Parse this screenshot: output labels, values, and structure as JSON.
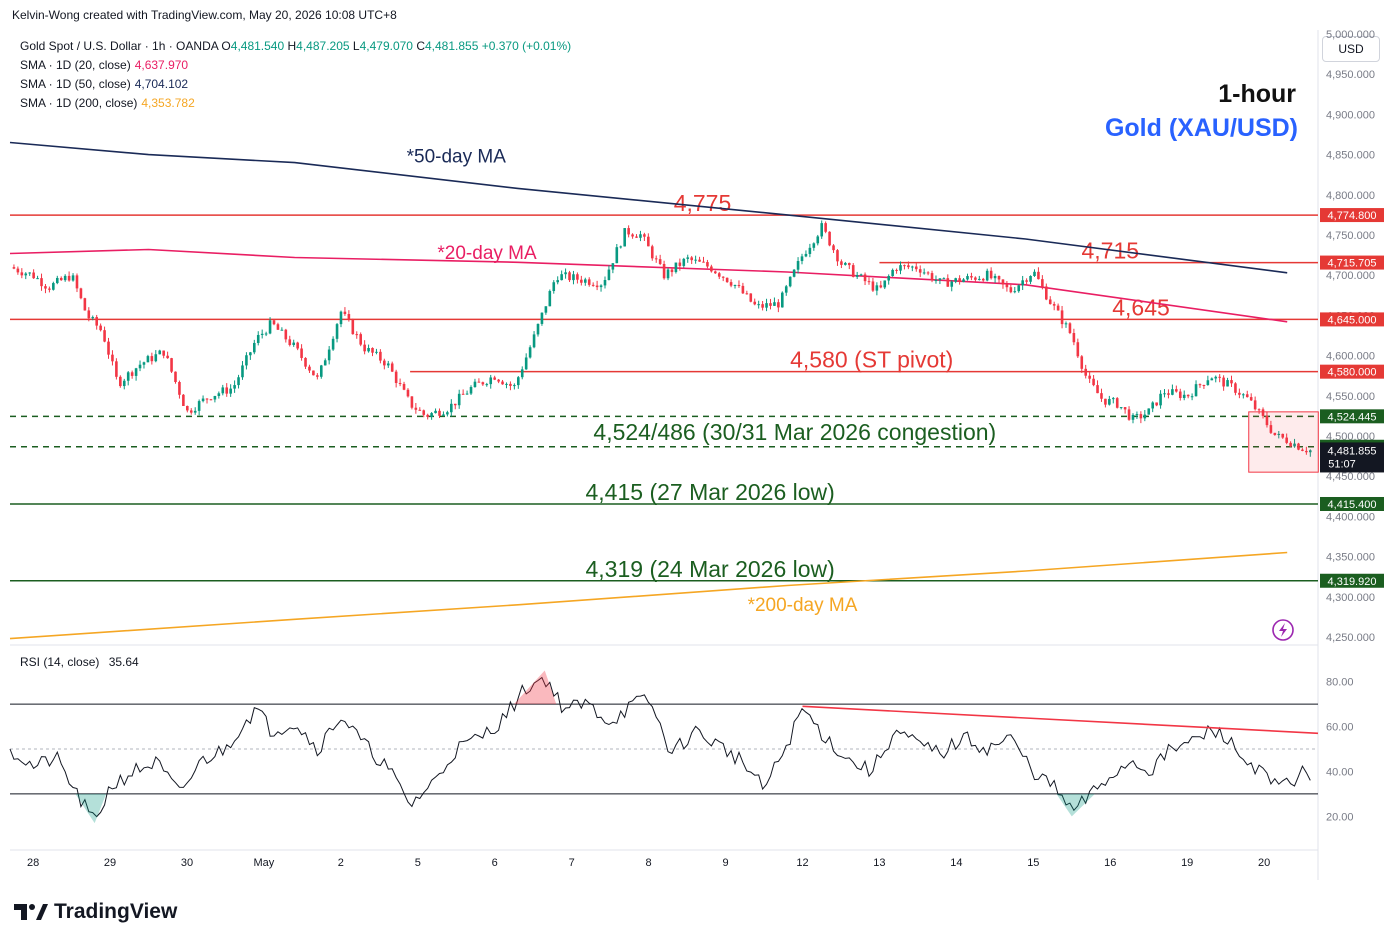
{
  "header": {
    "credit": "Kelvin-Wong created with TradingView.com, May 20, 2026 10:08 UTC+8",
    "symbol": "Gold Spot / U.S. Dollar · 1h · OANDA",
    "ohlc": {
      "open_label": "O",
      "open": "4,481.540",
      "high_label": "H",
      "high": "4,487.205",
      "low_label": "L",
      "low": "4,479.070",
      "close_label": "C",
      "close": "4,481.855",
      "change": "+0.370 (+0.01%)"
    },
    "indicators": [
      {
        "label": "SMA · 1D (20, close)",
        "value": "4,637.970",
        "color": "#e91e63"
      },
      {
        "label": "SMA · 1D (50, close)",
        "value": "4,704.102",
        "color": "#1a2a57"
      },
      {
        "label": "SMA · 1D (200, close)",
        "value": "4,353.782",
        "color": "#f5a623"
      }
    ],
    "currency_button": "USD"
  },
  "titles": {
    "timeframe": "1-hour",
    "instrument": "Gold (XAU/USD)"
  },
  "chart_data": [
    {
      "type": "candlestick",
      "ylim": [
        4240,
        5005
      ],
      "y_ticks": [
        "5,000.000",
        "4,950.000",
        "4,900.000",
        "4,850.000",
        "4,800.000",
        "4,750.000",
        "4,700.000",
        "4,650.000",
        "4,600.000",
        "4,550.000",
        "4,500.000",
        "4,450.000",
        "4,400.000",
        "4,350.000",
        "4,300.000",
        "4,250.000"
      ],
      "y_tick_values": [
        5000,
        4950,
        4900,
        4850,
        4800,
        4750,
        4700,
        4650,
        4600,
        4550,
        4500,
        4450,
        4400,
        4350,
        4300,
        4250
      ],
      "x_ticks": [
        "28",
        "29",
        "30",
        "May",
        "2",
        "5",
        "6",
        "7",
        "8",
        "9",
        "12",
        "13",
        "14",
        "15",
        "16",
        "19",
        "20"
      ],
      "x_domain": [
        0,
        17
      ],
      "x_tick_pos": [
        0.3,
        1.3,
        2.3,
        3.3,
        4.3,
        5.3,
        6.3,
        7.3,
        8.3,
        9.3,
        10.3,
        11.3,
        12.3,
        13.3,
        14.3,
        15.3,
        16.3
      ],
      "price_path": [
        [
          0,
          4710
        ],
        [
          0.3,
          4700
        ],
        [
          0.5,
          4685
        ],
        [
          0.8,
          4700
        ],
        [
          1.0,
          4650
        ],
        [
          1.2,
          4630
        ],
        [
          1.4,
          4565
        ],
        [
          1.7,
          4590
        ],
        [
          2.0,
          4605
        ],
        [
          2.3,
          4530
        ],
        [
          2.6,
          4550
        ],
        [
          2.9,
          4560
        ],
        [
          3.2,
          4620
        ],
        [
          3.4,
          4640
        ],
        [
          3.7,
          4610
        ],
        [
          4.0,
          4570
        ],
        [
          4.3,
          4655
        ],
        [
          4.6,
          4610
        ],
        [
          4.9,
          4590
        ],
        [
          5.2,
          4540
        ],
        [
          5.4,
          4525
        ],
        [
          5.7,
          4535
        ],
        [
          6.0,
          4560
        ],
        [
          6.3,
          4575
        ],
        [
          6.55,
          4560
        ],
        [
          6.8,
          4620
        ],
        [
          7.1,
          4700
        ],
        [
          7.4,
          4695
        ],
        [
          7.7,
          4690
        ],
        [
          8.0,
          4755
        ],
        [
          8.2,
          4750
        ],
        [
          8.5,
          4700
        ],
        [
          8.8,
          4720
        ],
        [
          9.1,
          4710
        ],
        [
          9.4,
          4690
        ],
        [
          9.7,
          4660
        ],
        [
          10.0,
          4665
        ],
        [
          10.3,
          4725
        ],
        [
          10.55,
          4760
        ],
        [
          10.8,
          4715
        ],
        [
          11.0,
          4700
        ],
        [
          11.3,
          4680
        ],
        [
          11.5,
          4710
        ],
        [
          11.8,
          4710
        ],
        [
          12.1,
          4690
        ],
        [
          12.4,
          4695
        ],
        [
          12.7,
          4700
        ],
        [
          13.0,
          4680
        ],
        [
          13.3,
          4705
        ],
        [
          13.5,
          4670
        ],
        [
          13.8,
          4625
        ],
        [
          14.0,
          4570
        ],
        [
          14.2,
          4545
        ],
        [
          14.4,
          4540
        ],
        [
          14.6,
          4520
        ],
        [
          14.8,
          4530
        ],
        [
          15.0,
          4555
        ],
        [
          15.3,
          4550
        ],
        [
          15.6,
          4575
        ],
        [
          15.9,
          4560
        ],
        [
          16.1,
          4545
        ],
        [
          16.3,
          4520
        ],
        [
          16.45,
          4500
        ],
        [
          16.6,
          4495
        ],
        [
          16.8,
          4485
        ],
        [
          16.9,
          4482
        ]
      ],
      "current_price": "4,481.855",
      "countdown": "51:07",
      "series": [
        {
          "name": "*50-day MA",
          "color": "#1a2a57",
          "points": [
            [
              0,
              4865
            ],
            [
              1.8,
              4850
            ],
            [
              3.7,
              4840
            ],
            [
              6.6,
              4808
            ],
            [
              10.1,
              4775
            ],
            [
              13.2,
              4745
            ],
            [
              16.6,
              4703
            ]
          ]
        },
        {
          "name": "*20-day MA",
          "color": "#e91e63",
          "points": [
            [
              0,
              4727
            ],
            [
              1.8,
              4732
            ],
            [
              3.7,
              4722
            ],
            [
              6.6,
              4716
            ],
            [
              10.1,
              4704
            ],
            [
              13.2,
              4688
            ],
            [
              16.6,
              4642
            ]
          ]
        },
        {
          "name": "*200-day MA",
          "color": "#f5a623",
          "points": [
            [
              0,
              4248
            ],
            [
              3.7,
              4272
            ],
            [
              6.6,
              4290
            ],
            [
              10.1,
              4314
            ],
            [
              13.2,
              4332
            ],
            [
              16.6,
              4355
            ]
          ]
        }
      ],
      "levels": [
        {
          "value": 4774.8,
          "label": "4,774.800",
          "color": "#e53935",
          "style": "solid",
          "annotation": "4,775",
          "ann_x": 9.0,
          "from_x": 0
        },
        {
          "value": 4715.705,
          "label": "4,715.705",
          "color": "#e53935",
          "style": "solid",
          "annotation": "4,715",
          "ann_x": 14.3,
          "from_x": 11.3
        },
        {
          "value": 4645.0,
          "label": "4,645.000",
          "color": "#e53935",
          "style": "solid",
          "annotation": "4,645",
          "ann_x": 14.7,
          "from_x": 0
        },
        {
          "value": 4580.0,
          "label": "4,580.000",
          "color": "#e53935",
          "style": "solid",
          "annotation": "4,580 (ST pivot)",
          "ann_x": 11.2,
          "from_x": 5.2
        },
        {
          "value": 4524.445,
          "label": "4,524.445",
          "color": "#1b5e20",
          "style": "dashed",
          "annotation": "",
          "ann_x": 0,
          "from_x": 0
        },
        {
          "value": 4486.59,
          "label": "4,486.590",
          "color": "#1b5e20",
          "style": "dashed",
          "annotation": "",
          "ann_x": 0,
          "from_x": 0
        },
        {
          "value": 4415.4,
          "label": "4,415.400",
          "color": "#1b5e20",
          "style": "solid",
          "annotation": "4,415 (27 Mar 2026 low)",
          "ann_x": 9.1,
          "from_x": 0
        },
        {
          "value": 4319.92,
          "label": "4,319.920",
          "color": "#1b5e20",
          "style": "solid",
          "annotation": "4,319 (24 Mar 2026 low)",
          "ann_x": 9.1,
          "from_x": 0
        }
      ],
      "annotations": [
        {
          "text": "4,524/486 (30/31 Mar 2026 congestion)",
          "x": 10.2,
          "y": 4495,
          "color": "#1b5e20"
        },
        {
          "text": "*50-day MA",
          "x": 5.8,
          "y": 4840,
          "color": "#1a2a57"
        },
        {
          "text": "*20-day MA",
          "x": 6.2,
          "y": 4720,
          "color": "#e91e63"
        },
        {
          "text": "*200-day MA",
          "x": 10.3,
          "y": 4282,
          "color": "#f5a623"
        }
      ]
    },
    {
      "type": "line",
      "name": "RSI (14, close)",
      "current_value": "35.64",
      "ylim": [
        5,
        95
      ],
      "y_ticks": [
        "80.00",
        "60.00",
        "40.00",
        "20.00"
      ],
      "y_tick_values": [
        80,
        60,
        40,
        20
      ],
      "bands": [
        70,
        50,
        30
      ],
      "values": [
        [
          0,
          50
        ],
        [
          0.3,
          42
        ],
        [
          0.6,
          46
        ],
        [
          0.9,
          28
        ],
        [
          1.1,
          17
        ],
        [
          1.3,
          33
        ],
        [
          1.6,
          40
        ],
        [
          1.9,
          44
        ],
        [
          2.2,
          30
        ],
        [
          2.5,
          45
        ],
        [
          2.8,
          50
        ],
        [
          3.0,
          60
        ],
        [
          3.2,
          68
        ],
        [
          3.4,
          58
        ],
        [
          3.7,
          62
        ],
        [
          4.0,
          50
        ],
        [
          4.3,
          65
        ],
        [
          4.6,
          52
        ],
        [
          4.9,
          42
        ],
        [
          5.2,
          25
        ],
        [
          5.5,
          35
        ],
        [
          5.8,
          50
        ],
        [
          6.1,
          55
        ],
        [
          6.4,
          63
        ],
        [
          6.7,
          77
        ],
        [
          6.95,
          82
        ],
        [
          7.2,
          68
        ],
        [
          7.5,
          70
        ],
        [
          7.8,
          62
        ],
        [
          8.1,
          70
        ],
        [
          8.3,
          72
        ],
        [
          8.6,
          48
        ],
        [
          8.9,
          58
        ],
        [
          9.2,
          52
        ],
        [
          9.5,
          45
        ],
        [
          9.8,
          32
        ],
        [
          10.1,
          52
        ],
        [
          10.3,
          68
        ],
        [
          10.6,
          55
        ],
        [
          10.9,
          45
        ],
        [
          11.2,
          40
        ],
        [
          11.5,
          58
        ],
        [
          11.8,
          52
        ],
        [
          12.1,
          48
        ],
        [
          12.4,
          55
        ],
        [
          12.7,
          50
        ],
        [
          13.0,
          55
        ],
        [
          13.3,
          40
        ],
        [
          13.6,
          32
        ],
        [
          13.8,
          22
        ],
        [
          14.0,
          28
        ],
        [
          14.3,
          38
        ],
        [
          14.6,
          45
        ],
        [
          14.8,
          40
        ],
        [
          15.1,
          50
        ],
        [
          15.3,
          52
        ],
        [
          15.6,
          58
        ],
        [
          15.8,
          56
        ],
        [
          16.0,
          46
        ],
        [
          16.2,
          42
        ],
        [
          16.4,
          34
        ],
        [
          16.6,
          34
        ],
        [
          16.8,
          40
        ],
        [
          16.9,
          36
        ]
      ],
      "trendline": [
        [
          10.3,
          69
        ],
        [
          17.0,
          57
        ]
      ]
    }
  ]
}
